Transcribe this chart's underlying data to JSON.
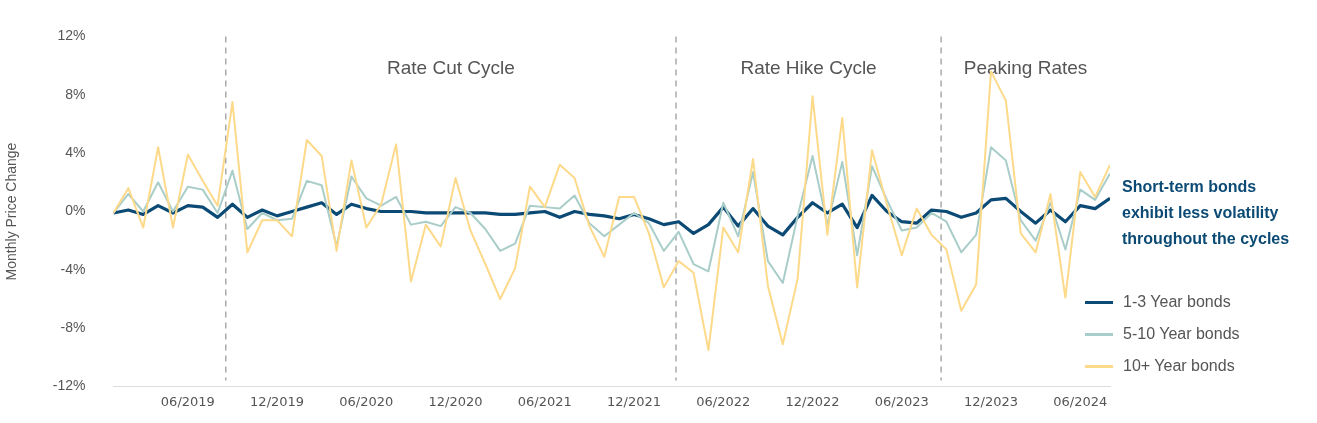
{
  "chart_data": {
    "type": "line",
    "ylabel": "Monthly Price Change",
    "x": [
      "2019-01",
      "2019-02",
      "2019-03",
      "2019-04",
      "2019-05",
      "2019-06",
      "2019-07",
      "2019-08",
      "2019-09",
      "2019-10",
      "2019-11",
      "2019-12",
      "2020-01",
      "2020-02",
      "2020-03",
      "2020-04",
      "2020-05",
      "2020-06",
      "2020-07",
      "2020-08",
      "2020-09",
      "2020-10",
      "2020-11",
      "2020-12",
      "2021-01",
      "2021-02",
      "2021-03",
      "2021-04",
      "2021-05",
      "2021-06",
      "2021-07",
      "2021-08",
      "2021-09",
      "2021-10",
      "2021-11",
      "2021-12",
      "2022-01",
      "2022-02",
      "2022-03",
      "2022-04",
      "2022-05",
      "2022-06",
      "2022-07",
      "2022-08",
      "2022-09",
      "2022-10",
      "2022-11",
      "2022-12",
      "2023-01",
      "2023-02",
      "2023-03",
      "2023-04",
      "2023-05",
      "2023-06",
      "2023-07",
      "2023-08",
      "2023-09",
      "2023-10",
      "2023-11",
      "2023-12",
      "2024-01",
      "2024-02",
      "2024-03",
      "2024-04",
      "2024-05",
      "2024-06",
      "2024-07",
      "2024-08"
    ],
    "series": [
      {
        "name": "1-3 Year bonds",
        "color": "#0b4a74",
        "values": [
          -0.1,
          0.1,
          -0.2,
          0.4,
          -0.1,
          0.4,
          0.3,
          -0.4,
          0.5,
          -0.4,
          0.1,
          -0.3,
          0.0,
          0.3,
          0.6,
          -0.2,
          0.5,
          0.2,
          0.0,
          0.0,
          0.0,
          -0.1,
          -0.1,
          -0.1,
          -0.1,
          -0.1,
          -0.2,
          -0.2,
          -0.1,
          0.0,
          -0.4,
          0.0,
          -0.2,
          -0.3,
          -0.5,
          -0.2,
          -0.5,
          -0.9,
          -0.7,
          -1.5,
          -0.9,
          0.3,
          -1.0,
          0.2,
          -1.0,
          -1.6,
          -0.4,
          0.6,
          -0.1,
          0.5,
          -1.1,
          1.1,
          0.0,
          -0.7,
          -0.8,
          0.1,
          0.0,
          -0.4,
          -0.1,
          0.8,
          0.9,
          0.0,
          -0.8,
          0.1,
          -0.7,
          0.4,
          0.2,
          0.9
        ]
      },
      {
        "name": "5-10 Year bonds",
        "color": "#a9cdc8",
        "values": [
          -0.1,
          1.2,
          0.0,
          2.0,
          0.0,
          1.7,
          1.5,
          -0.1,
          2.8,
          -1.2,
          -0.1,
          -0.6,
          -0.5,
          2.1,
          1.8,
          -2.4,
          2.4,
          0.9,
          0.4,
          1.0,
          -0.9,
          -0.7,
          -1.0,
          0.3,
          -0.1,
          -1.2,
          -2.7,
          -2.2,
          0.4,
          0.3,
          0.2,
          1.1,
          -0.8,
          -1.7,
          -0.9,
          -0.1,
          -0.8,
          -2.7,
          -1.4,
          -3.6,
          -4.1,
          0.6,
          -1.7,
          2.7,
          -3.4,
          -4.9,
          -0.3,
          3.8,
          -0.9,
          3.4,
          -3.0,
          3.1,
          0.8,
          -1.3,
          -1.1,
          -0.1,
          -0.7,
          -2.8,
          -1.6,
          4.4,
          3.5,
          -0.6,
          -2.0,
          0.6,
          -2.6,
          1.5,
          0.8,
          2.6
        ]
      },
      {
        "name": "10+ Year bonds",
        "color": "#fdd98a",
        "values": [
          -0.1,
          1.6,
          -1.1,
          4.4,
          -1.1,
          3.9,
          2.1,
          0.4,
          7.5,
          -2.8,
          -0.6,
          -0.6,
          -1.7,
          4.9,
          3.8,
          -2.7,
          3.5,
          -1.1,
          0.5,
          4.6,
          -4.8,
          -0.9,
          -2.4,
          2.3,
          -1.3,
          -3.6,
          -6.0,
          -3.9,
          1.7,
          0.3,
          3.2,
          2.3,
          -1.0,
          -3.1,
          1.0,
          1.0,
          -1.5,
          -5.2,
          -3.4,
          -4.2,
          -9.5,
          -1.1,
          -2.8,
          3.6,
          -5.1,
          -9.1,
          -4.6,
          7.9,
          -1.6,
          6.4,
          -5.2,
          4.2,
          0.5,
          -3.0,
          0.2,
          -1.6,
          -2.6,
          -6.8,
          -5.0,
          9.6,
          7.6,
          -1.5,
          -2.8,
          1.2,
          -5.9,
          2.7,
          1.0,
          3.2
        ]
      }
    ],
    "xlim": [
      "2019-01",
      "2024-08"
    ],
    "xticks": [
      {
        "value": "2019-06",
        "label": "06/2019"
      },
      {
        "value": "2019-12",
        "label": "12/2019"
      },
      {
        "value": "2020-06",
        "label": "06/2020"
      },
      {
        "value": "2020-12",
        "label": "12/2020"
      },
      {
        "value": "2021-06",
        "label": "06/2021"
      },
      {
        "value": "2021-12",
        "label": "12/2021"
      },
      {
        "value": "2022-06",
        "label": "06/2022"
      },
      {
        "value": "2022-12",
        "label": "12/2022"
      },
      {
        "value": "2023-06",
        "label": "06/2023"
      },
      {
        "value": "2023-12",
        "label": "12/2023"
      },
      {
        "value": "2024-06",
        "label": "06/2024"
      }
    ],
    "ylim": [
      -12,
      12
    ],
    "yticks": [
      {
        "value": -12,
        "label": "-12%"
      },
      {
        "value": -8,
        "label": "-8%"
      },
      {
        "value": -4,
        "label": "-4%"
      },
      {
        "value": 0,
        "label": "0%"
      },
      {
        "value": 4,
        "label": "4%"
      },
      {
        "value": 8,
        "label": "8%"
      },
      {
        "value": 12,
        "label": "12%"
      }
    ],
    "ref_lines": [
      {
        "axis": "x",
        "value": "2019-08-18",
        "color": "#aaaaaa",
        "line_style": "dashed"
      },
      {
        "axis": "x",
        "value": "2022-02-24",
        "color": "#aaaaaa",
        "line_style": "dashed"
      },
      {
        "axis": "x",
        "value": "2023-08-21",
        "color": "#aaaaaa",
        "line_style": "dashed"
      }
    ],
    "annotations": [
      "Rate Cut Cycle",
      "Rate Hike Cycle",
      "Peaking Rates",
      "Short-term bonds exhibit less volatility throughout the cycles"
    ],
    "grid": false,
    "legend": "bottom right"
  }
}
